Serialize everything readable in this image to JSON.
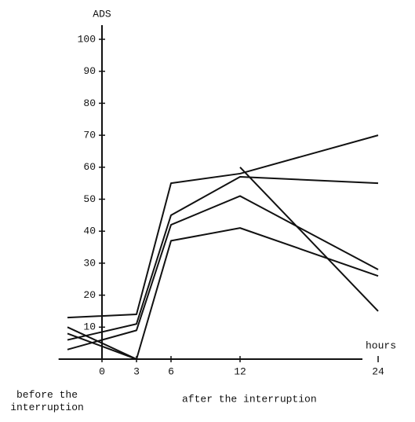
{
  "chart_data": {
    "type": "line",
    "y_label": "ADS",
    "x_label": "hours",
    "annotations": [
      "before the interruption",
      "after the interruption"
    ],
    "x": [
      -3,
      3,
      6,
      12,
      24
    ],
    "series": [
      {
        "color": "#111111",
        "values": [
          13,
          14,
          55,
          58,
          70
        ]
      },
      {
        "color": "#111111",
        "values": [
          6,
          11,
          45,
          57,
          55
        ]
      },
      {
        "color": "#111111",
        "values": [
          3,
          9,
          42,
          51,
          28
        ]
      },
      {
        "color": "#111111",
        "values": [
          10,
          0,
          37,
          41,
          26
        ]
      },
      {
        "color": "#111111",
        "values": [
          8,
          0,
          null,
          60,
          15
        ]
      }
    ],
    "xlim": [
      -3.5,
      25
    ],
    "ylim": [
      0,
      100
    ],
    "xticks": [
      0,
      3,
      6,
      12,
      24
    ],
    "yticks": [
      10,
      20,
      30,
      40,
      50,
      60,
      70,
      80,
      90,
      100
    ]
  }
}
